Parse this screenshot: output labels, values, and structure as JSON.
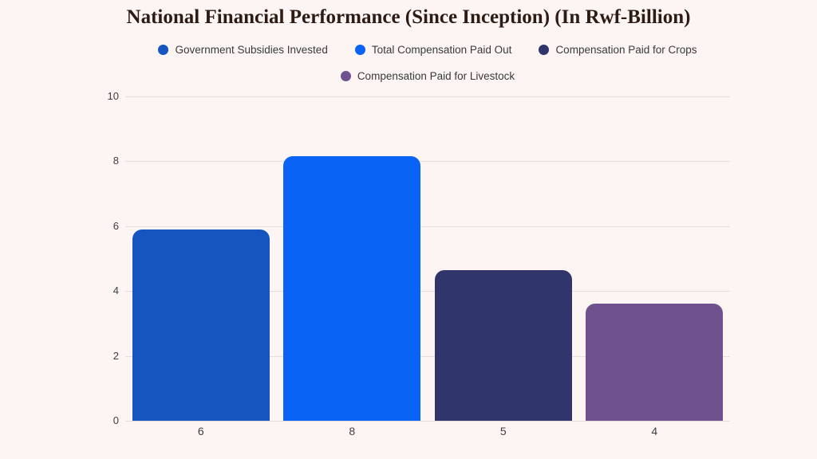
{
  "chart_data": {
    "type": "bar",
    "title": "National Financial Performance (Since Inception) (In Rwf-Billion)",
    "categories": [
      "6",
      "8",
      "5",
      "4"
    ],
    "series": [
      {
        "name": "Government Subsidies Invested",
        "value": 5.9,
        "color": "#1655c0"
      },
      {
        "name": "Total Compensation Paid Out",
        "value": 8.15,
        "color": "#0963f4"
      },
      {
        "name": "Compensation Paid for Crops",
        "value": 4.65,
        "color": "#30366b"
      },
      {
        "name": "Compensation Paid for Livestock",
        "value": 3.6,
        "color": "#705190"
      }
    ],
    "xlabel": "",
    "ylabel": "",
    "ylim": [
      0,
      10
    ],
    "yticks": [
      0,
      2,
      4,
      6,
      8,
      10
    ],
    "grid": true,
    "legend_position": "top",
    "legend_rows": [
      3,
      1
    ]
  },
  "colors": {
    "background": "#fcf5f4",
    "gridline": "#e5dedc",
    "title_text": "#2e1b13",
    "legend_text": "#3a3a3a",
    "tick_text": "#3f3f3f"
  }
}
